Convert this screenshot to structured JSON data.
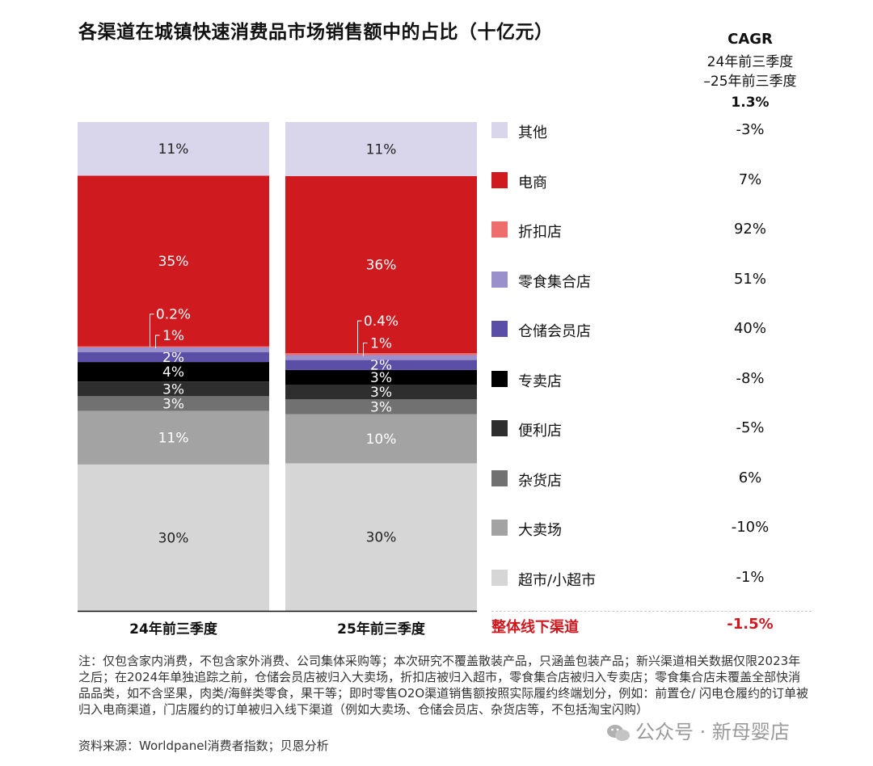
{
  "title": "各渠道在城镇快速消费品市场销售额中的占比（十亿元）",
  "cagr": {
    "label": "CAGR",
    "period_line1": "24年前三季度",
    "period_line2": "–25年前三季度",
    "total": "1.3%"
  },
  "legend": [
    {
      "name": "其他",
      "cagr": "-3%",
      "color": "#d9d6ec"
    },
    {
      "name": "电商",
      "cagr": "7%",
      "color": "#cf1b20"
    },
    {
      "name": "折扣店",
      "cagr": "92%",
      "color": "#ee6d6d"
    },
    {
      "name": "零食集合店",
      "cagr": "51%",
      "color": "#9a90cc"
    },
    {
      "name": "仓储会员店",
      "cagr": "40%",
      "color": "#5a4ea6"
    },
    {
      "name": "专卖店",
      "cagr": "-8%",
      "color": "#000000"
    },
    {
      "name": "便利店",
      "cagr": "-5%",
      "color": "#2e2e2e"
    },
    {
      "name": "杂货店",
      "cagr": "6%",
      "color": "#717171"
    },
    {
      "name": "大卖场",
      "cagr": "-10%",
      "color": "#a3a3a3"
    },
    {
      "name": "超市/小超市",
      "cagr": "-1%",
      "color": "#d6d6d6"
    }
  ],
  "total_row": {
    "label": "整体线下渠道",
    "cagr": "-1.5%"
  },
  "chart_data": {
    "type": "bar",
    "stacked": true,
    "normalized": true,
    "categories": [
      "24年前三季度",
      "25年前三季度"
    ],
    "series": [
      {
        "name": "超市/小超市",
        "values": [
          30,
          30
        ],
        "labels": [
          "30%",
          "30%"
        ]
      },
      {
        "name": "大卖场",
        "values": [
          11,
          10
        ],
        "labels": [
          "11%",
          "10%"
        ]
      },
      {
        "name": "杂货店",
        "values": [
          3,
          3
        ],
        "labels": [
          "3%",
          "3%"
        ]
      },
      {
        "name": "便利店",
        "values": [
          3,
          3
        ],
        "labels": [
          "3%",
          "3%"
        ]
      },
      {
        "name": "专卖店",
        "values": [
          4,
          3
        ],
        "labels": [
          "4%",
          "3%"
        ]
      },
      {
        "name": "仓储会员店",
        "values": [
          2,
          2
        ],
        "labels": [
          "2%",
          "2%"
        ]
      },
      {
        "name": "零食集合店",
        "values": [
          1,
          1
        ],
        "labels": [
          "1%",
          "1%"
        ]
      },
      {
        "name": "折扣店",
        "values": [
          0.2,
          0.4
        ],
        "labels": [
          "0.2%",
          "0.4%"
        ]
      },
      {
        "name": "电商",
        "values": [
          35,
          36
        ],
        "labels": [
          "35%",
          "36%"
        ]
      },
      {
        "name": "其他",
        "values": [
          11,
          11
        ],
        "labels": [
          "11%",
          "11%"
        ]
      }
    ]
  },
  "footnote": "注：仅包含家内消费，不包含家外消费、公司集体采购等；本次研究不覆盖散装产品，只涵盖包装产品；新兴渠道相关数据仅限2023年之后；在2024年单独追踪之前，仓储会员店被归入大卖场，折扣店被归入超市，零食集合店被归入专卖店；零食集合店未覆盖全部快消品品类，如不含坚果，肉类/海鲜类零食，果干等；即时零售O2O渠道销售额按照实际履约终端划分，例如：前置仓/ 闪电仓履约的订单被归入电商渠道，门店履约的订单被归入线下渠道（例如大卖场、仓储会员店、杂货店等，不包括淘宝闪购）",
  "source": "资料来源：Worldpanel消费者指数；贝恩分析",
  "watermark": "公众号 · 新母婴店"
}
